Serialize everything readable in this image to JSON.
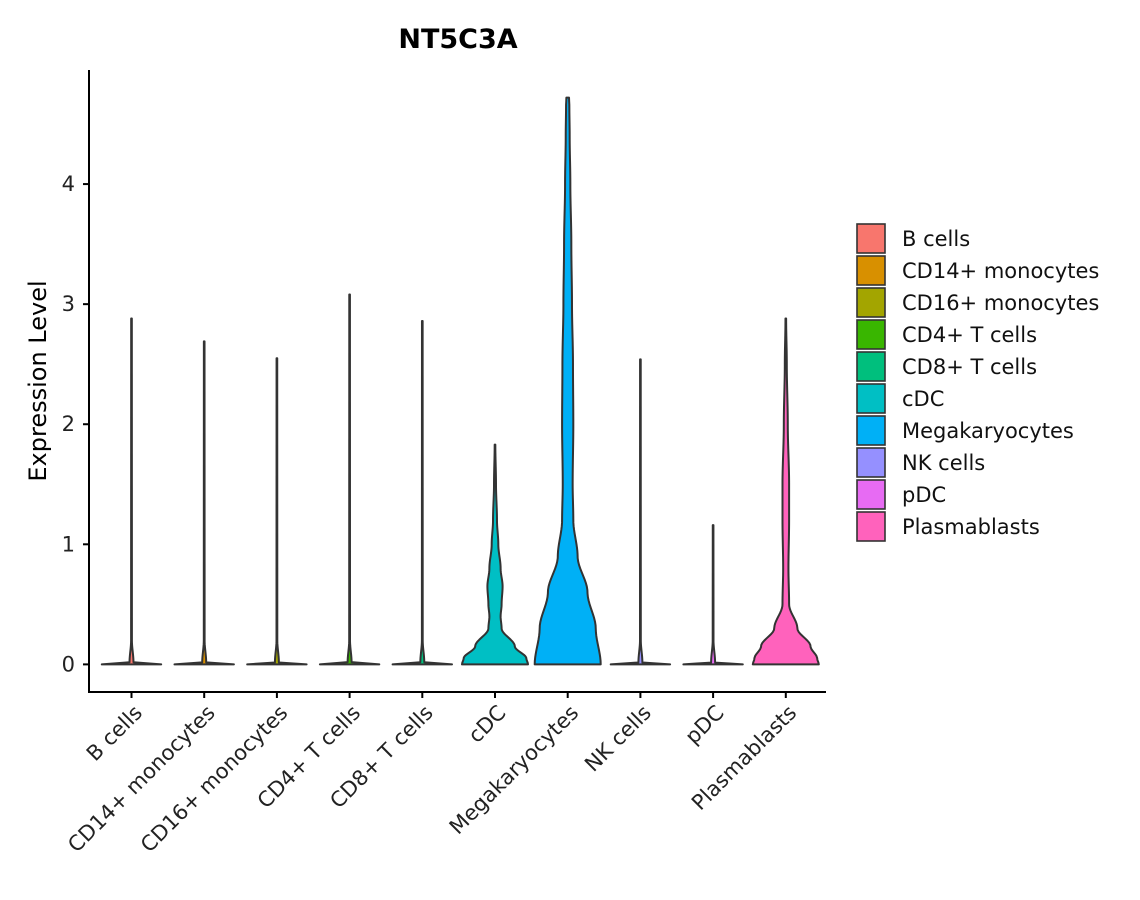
{
  "chart_data": {
    "type": "violin",
    "title": "NT5C3A",
    "xlabel": "",
    "ylabel": "Expression Level",
    "ylim": [
      -0.23,
      4.95
    ],
    "yticks": [
      0,
      1,
      2,
      3,
      4
    ],
    "grid": false,
    "legend_position": "right",
    "categories": [
      "B cells",
      "CD14+ monocytes",
      "CD16+ monocytes",
      "CD4+ T cells",
      "CD8+ T cells",
      "cDC",
      "Megakaryocytes",
      "NK cells",
      "pDC",
      "Plasmablasts"
    ],
    "colors": [
      "#F8766D",
      "#D89000",
      "#A3A500",
      "#39B600",
      "#00BF7D",
      "#00BFC4",
      "#00B0F6",
      "#9590FF",
      "#E76BF3",
      "#FF62BC"
    ],
    "series": [
      {
        "name": "B cells",
        "max": 2.88,
        "profile": [
          [
            0,
            0.9
          ],
          [
            0.015,
            0.06
          ],
          [
            0.2,
            0.012
          ],
          [
            2.88,
            0.01
          ]
        ]
      },
      {
        "name": "CD14+ monocytes",
        "max": 2.69,
        "profile": [
          [
            0,
            0.9
          ],
          [
            0.015,
            0.06
          ],
          [
            0.2,
            0.012
          ],
          [
            2.69,
            0.01
          ]
        ]
      },
      {
        "name": "CD16+ monocytes",
        "max": 2.55,
        "profile": [
          [
            0,
            0.9
          ],
          [
            0.015,
            0.06
          ],
          [
            0.2,
            0.012
          ],
          [
            2.55,
            0.01
          ]
        ]
      },
      {
        "name": "CD4+ T cells",
        "max": 3.08,
        "profile": [
          [
            0,
            0.9
          ],
          [
            0.015,
            0.06
          ],
          [
            0.2,
            0.012
          ],
          [
            3.08,
            0.01
          ]
        ]
      },
      {
        "name": "CD8+ T cells",
        "max": 2.86,
        "profile": [
          [
            0,
            0.9
          ],
          [
            0.015,
            0.06
          ],
          [
            0.2,
            0.012
          ],
          [
            2.86,
            0.01
          ]
        ]
      },
      {
        "name": "cDC",
        "max": 1.83,
        "profile": [
          [
            0,
            1.0
          ],
          [
            0.05,
            0.95
          ],
          [
            0.15,
            0.6
          ],
          [
            0.3,
            0.2
          ],
          [
            0.4,
            0.17
          ],
          [
            0.5,
            0.2
          ],
          [
            0.65,
            0.23
          ],
          [
            0.8,
            0.17
          ],
          [
            1.0,
            0.1
          ],
          [
            1.2,
            0.06
          ],
          [
            1.5,
            0.03
          ],
          [
            1.83,
            0.01
          ]
        ]
      },
      {
        "name": "Megakaryocytes",
        "max": 4.72,
        "profile": [
          [
            0,
            1.0
          ],
          [
            0.3,
            0.85
          ],
          [
            0.6,
            0.6
          ],
          [
            0.9,
            0.3
          ],
          [
            1.2,
            0.17
          ],
          [
            1.5,
            0.15
          ],
          [
            2.0,
            0.17
          ],
          [
            2.5,
            0.16
          ],
          [
            3.0,
            0.13
          ],
          [
            3.5,
            0.11
          ],
          [
            4.0,
            0.08
          ],
          [
            4.4,
            0.06
          ],
          [
            4.65,
            0.05
          ],
          [
            4.72,
            0.04
          ]
        ]
      },
      {
        "name": "NK cells",
        "max": 2.54,
        "profile": [
          [
            0,
            0.9
          ],
          [
            0.015,
            0.06
          ],
          [
            0.2,
            0.012
          ],
          [
            2.54,
            0.01
          ]
        ]
      },
      {
        "name": "pDC",
        "max": 1.16,
        "profile": [
          [
            0,
            0.9
          ],
          [
            0.015,
            0.06
          ],
          [
            0.2,
            0.012
          ],
          [
            1.16,
            0.01
          ]
        ]
      },
      {
        "name": "Plasmablasts",
        "max": 2.88,
        "profile": [
          [
            0,
            1.0
          ],
          [
            0.05,
            0.95
          ],
          [
            0.15,
            0.75
          ],
          [
            0.3,
            0.35
          ],
          [
            0.5,
            0.1
          ],
          [
            0.8,
            0.08
          ],
          [
            1.2,
            0.1
          ],
          [
            1.5,
            0.1
          ],
          [
            2.0,
            0.06
          ],
          [
            2.5,
            0.03
          ],
          [
            2.88,
            0.01
          ]
        ]
      }
    ]
  }
}
